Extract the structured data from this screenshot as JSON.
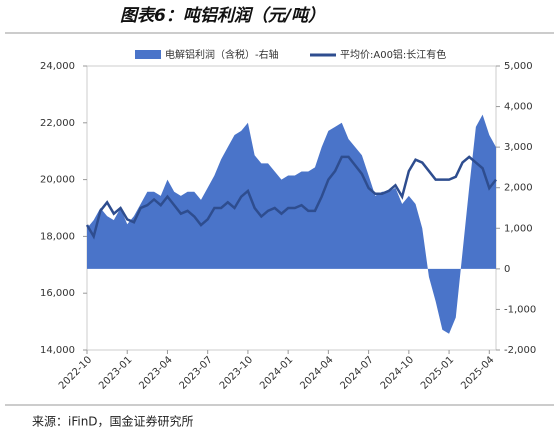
{
  "chart_data": {
    "type": "area-line",
    "title": "图表6：吨铝利润（元/吨）",
    "source": "来源：iFinD，国金证券研究所",
    "categories": [
      "2022-10",
      null,
      null,
      null,
      null,
      null,
      "2023-01",
      null,
      null,
      null,
      null,
      null,
      "2023-04",
      null,
      null,
      null,
      null,
      null,
      "2023-07",
      null,
      null,
      null,
      null,
      null,
      "2023-10",
      null,
      null,
      null,
      null,
      null,
      "2024-01",
      null,
      null,
      null,
      null,
      null,
      "2024-04",
      null,
      null,
      null,
      null,
      null,
      "2024-07",
      null,
      null,
      null,
      null,
      null,
      "2024-10",
      null,
      null,
      null,
      null,
      null,
      "2025-01",
      null,
      null,
      null,
      null,
      null,
      "2025-04",
      null
    ],
    "series": [
      {
        "name": "电解铝利润（含税）-右轴",
        "color": "#4a74c9",
        "axis": "y2",
        "values": [
          1000,
          1200,
          1500,
          1300,
          1200,
          1500,
          1100,
          1300,
          1600,
          1900,
          1900,
          1800,
          2200,
          1900,
          1800,
          1900,
          1900,
          1700,
          2000,
          2300,
          2700,
          3000,
          3300,
          3400,
          3600,
          2800,
          2600,
          2600,
          2400,
          2200,
          2300,
          2300,
          2400,
          2400,
          2500,
          3000,
          3400,
          3500,
          3600,
          3200,
          3000,
          2800,
          2300,
          1800,
          1900,
          1900,
          2000,
          1600,
          1800,
          1600,
          1000,
          -200,
          -800,
          -1500,
          -1600,
          -1200,
          400,
          2000,
          3500,
          3800,
          3300,
          3000
        ]
      },
      {
        "name": "平均价:A00铝:长江有色",
        "color": "#2e4d8f",
        "values": [
          18400,
          18000,
          18900,
          19200,
          18800,
          19000,
          18600,
          18500,
          19000,
          19100,
          19300,
          19100,
          19400,
          19100,
          18800,
          18900,
          18700,
          18400,
          18600,
          19000,
          19000,
          19200,
          19000,
          19400,
          19600,
          19000,
          18700,
          18900,
          19000,
          18800,
          19000,
          19000,
          19100,
          18900,
          18900,
          19400,
          20000,
          20300,
          20800,
          20800,
          20500,
          20200,
          19700,
          19500,
          19500,
          19600,
          19800,
          19400,
          20300,
          20700,
          20600,
          20300,
          20000,
          20000,
          20000,
          20100,
          20600,
          20800,
          20600,
          20400,
          19700,
          20000
        ]
      }
    ],
    "ylim": [
      14000,
      24000
    ],
    "yticks": [
      {
        "value": 14000,
        "label": "14,000"
      },
      {
        "value": 16000,
        "label": "16,000"
      },
      {
        "value": 18000,
        "label": "18,000"
      },
      {
        "value": 20000,
        "label": "20,000"
      },
      {
        "value": 22000,
        "label": "22,000"
      },
      {
        "value": 24000,
        "label": "24,000"
      }
    ],
    "y2lim": [
      -2000,
      5000
    ],
    "y2ticks": [
      {
        "value": -2000,
        "label": "-2,000"
      },
      {
        "value": -1000,
        "label": "-1,000"
      },
      0,
      {
        "value": 1000,
        "label": "1,000"
      },
      {
        "value": 2000,
        "label": "2,000"
      },
      {
        "value": 3000,
        "label": "3,000"
      },
      {
        "value": 4000,
        "label": "4,000"
      },
      {
        "value": 5000,
        "label": "5,000"
      }
    ]
  }
}
